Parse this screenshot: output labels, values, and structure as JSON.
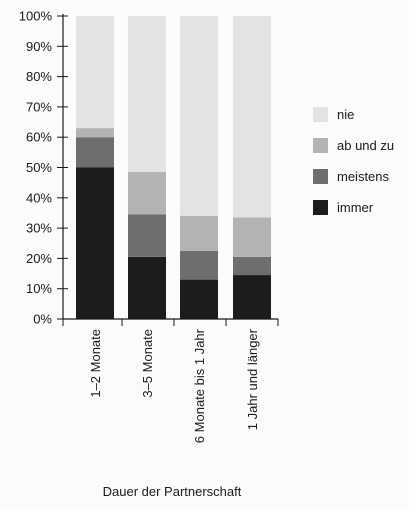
{
  "chart_data": {
    "type": "bar",
    "stacked": true,
    "xlabel": "Dauer der Partnerschaft",
    "ylabel": "",
    "ylim": [
      0,
      100
    ],
    "yticks": [
      0,
      10,
      20,
      30,
      40,
      50,
      60,
      70,
      80,
      90,
      100
    ],
    "ytick_suffix": "%",
    "grid": false,
    "legend": "right",
    "categories": [
      "1–2 Monate",
      "3–5 Monate",
      "6 Monate bis 1 Jahr",
      "1 Jahr und länger"
    ],
    "series": [
      {
        "name": "immer",
        "color": "#1c1c1c",
        "values": [
          50,
          20.5,
          13,
          14.5
        ]
      },
      {
        "name": "meistens",
        "color": "#6e6e6e",
        "values": [
          10,
          14,
          9.5,
          6
        ]
      },
      {
        "name": "ab und zu",
        "color": "#b3b3b3",
        "values": [
          3,
          14,
          11.5,
          13
        ]
      },
      {
        "name": "nie",
        "color": "#e3e3e3",
        "values": [
          37,
          51.5,
          66,
          66.5
        ]
      }
    ],
    "legend_order": [
      "nie",
      "ab und zu",
      "meistens",
      "immer"
    ]
  }
}
